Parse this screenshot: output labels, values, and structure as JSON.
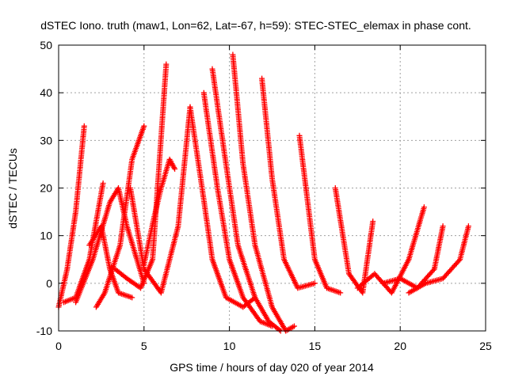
{
  "chart_data": {
    "type": "scatter",
    "title": "dSTEC Iono. truth (maw1, Lon=62, Lat=-67, h=59): STEC-STEC_elemax in phase cont.",
    "xlabel": "GPS time / hours of day 020 of year 2014",
    "ylabel": "dSTEC  / TECUs",
    "xlim": [
      0,
      25
    ],
    "ylim": [
      -10,
      50
    ],
    "xticks": [
      0,
      5,
      10,
      15,
      20,
      25
    ],
    "yticks": [
      -10,
      0,
      10,
      20,
      30,
      40,
      50
    ],
    "grid": true,
    "marker": "plus",
    "series_color": "#ff0000",
    "series": [
      {
        "x": [
          0.0,
          0.5,
          1.0,
          1.5
        ],
        "y": [
          -5,
          3,
          15,
          33
        ]
      },
      {
        "x": [
          0.3,
          1.0,
          1.8,
          2.6
        ],
        "y": [
          -4,
          -3,
          5,
          21
        ]
      },
      {
        "x": [
          1.0,
          2.0,
          3.0,
          3.5,
          4.0,
          5.0
        ],
        "y": [
          -4,
          5,
          17,
          20,
          12,
          0
        ]
      },
      {
        "x": [
          1.8,
          2.5,
          3.0,
          3.5,
          4.3
        ],
        "y": [
          8,
          12,
          3,
          -2,
          -3
        ]
      },
      {
        "x": [
          2.2,
          2.7,
          3.6,
          4.3,
          5.0
        ],
        "y": [
          -5,
          -2,
          8,
          26,
          33
        ]
      },
      {
        "x": [
          3.3,
          4.0,
          4.8,
          5.5,
          6.3
        ],
        "y": [
          3,
          1,
          -1,
          5,
          46
        ]
      },
      {
        "x": [
          4.2,
          5.0,
          6.0,
          7.0,
          7.7
        ],
        "y": [
          20,
          3,
          -2,
          12,
          37
        ]
      },
      {
        "x": [
          5.0,
          5.6,
          6.0,
          6.5,
          6.8
        ],
        "y": [
          4,
          14,
          20,
          26,
          24
        ]
      },
      {
        "x": [
          7.7,
          8.4,
          9.0,
          9.8,
          10.8,
          11.5
        ],
        "y": [
          37,
          20,
          5,
          -3,
          -5,
          -3
        ]
      },
      {
        "x": [
          8.5,
          9.3,
          10.0,
          10.8,
          11.8,
          12.5
        ],
        "y": [
          40,
          20,
          5,
          -3,
          -8,
          -9
        ]
      },
      {
        "x": [
          9.0,
          9.8,
          10.5,
          11.5,
          12.3,
          13.0
        ],
        "y": [
          45,
          25,
          8,
          -3,
          -8,
          -10
        ]
      },
      {
        "x": [
          10.2,
          10.8,
          11.5,
          12.5,
          13.3,
          13.8
        ],
        "y": [
          48,
          25,
          8,
          -5,
          -10,
          -9
        ]
      },
      {
        "x": [
          11.9,
          12.5,
          13.2,
          14.0,
          15.0
        ],
        "y": [
          43,
          22,
          5,
          -1,
          0
        ]
      },
      {
        "x": [
          14.1,
          15.0,
          15.7,
          16.5
        ],
        "y": [
          31,
          5,
          -1,
          -2
        ]
      },
      {
        "x": [
          16.2,
          17.0,
          17.8,
          18.4
        ],
        "y": [
          20,
          2,
          -2,
          13
        ]
      },
      {
        "x": [
          17.5,
          18.5,
          19.5,
          20.5,
          21.4
        ],
        "y": [
          -1,
          2,
          -2,
          5,
          16
        ]
      },
      {
        "x": [
          19.0,
          20.0,
          21.0,
          22.0,
          22.5
        ],
        "y": [
          0,
          1,
          -1,
          3,
          12
        ]
      },
      {
        "x": [
          20.5,
          21.5,
          22.5,
          23.5,
          24.0
        ],
        "y": [
          -2,
          0,
          1,
          5,
          12
        ]
      }
    ]
  }
}
